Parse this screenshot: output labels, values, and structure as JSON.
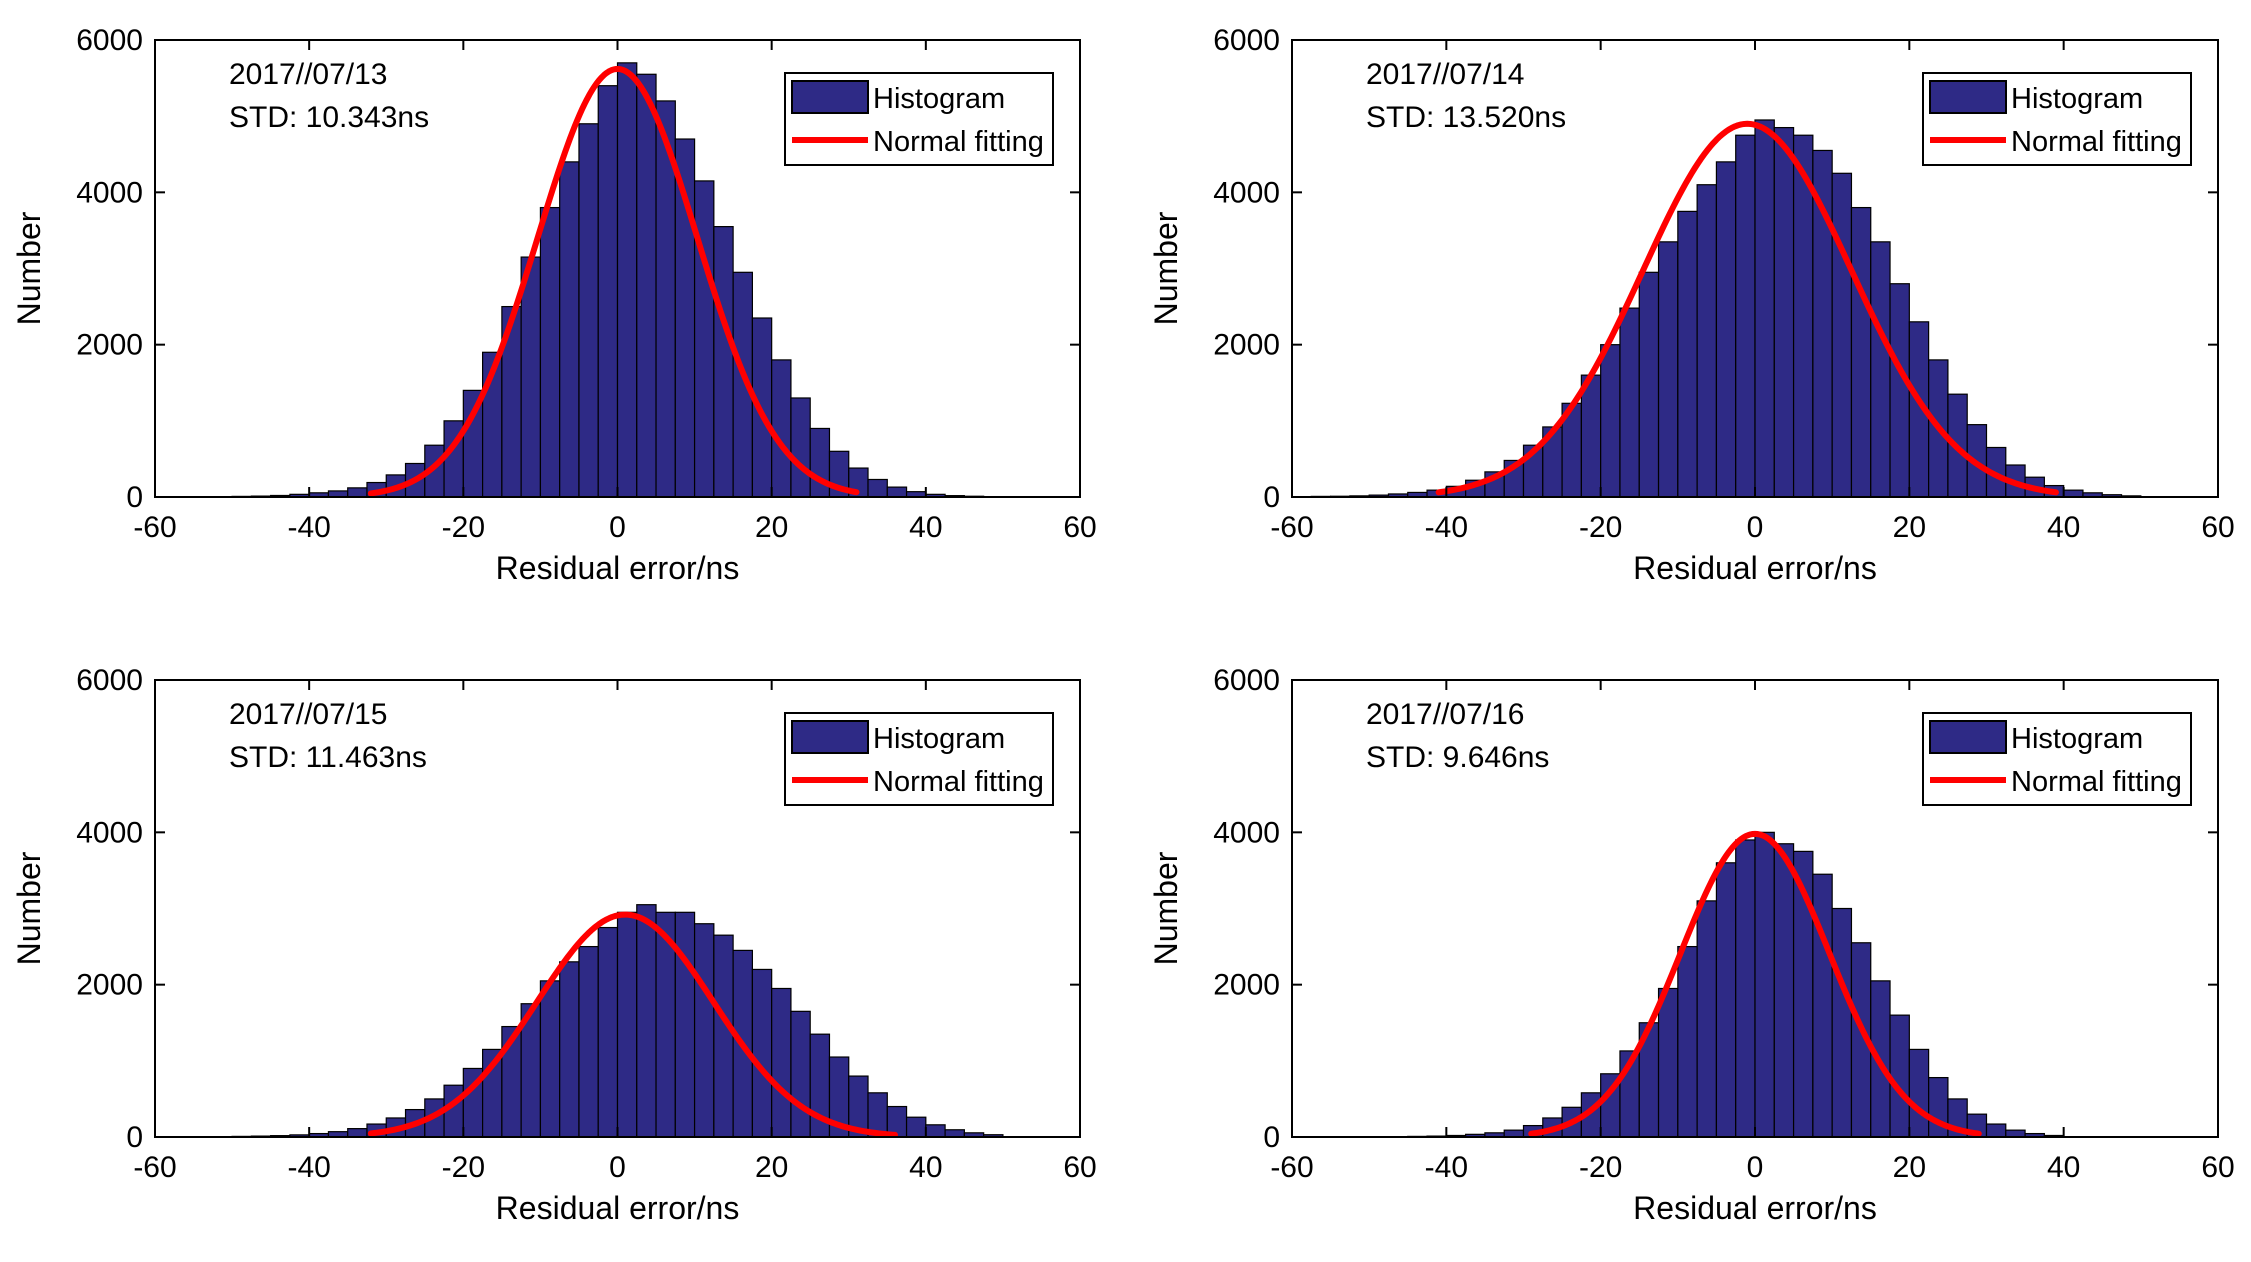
{
  "colors": {
    "bar_fill": "#2E2A86",
    "bar_edge": "#000000",
    "fit_line": "#FF0000",
    "axes": "#000000"
  },
  "legend": {
    "histogram_label": "Histogram",
    "fit_label": "Normal fitting"
  },
  "chart_data": [
    {
      "type": "bar",
      "title": "",
      "annotation_date": "2017//07/13",
      "annotation_std": "STD: 10.343ns",
      "xlabel": "Residual error/ns",
      "ylabel": "Number",
      "xlim": [
        -60,
        60
      ],
      "ylim": [
        0,
        6000
      ],
      "xticks": [
        -60,
        -40,
        -20,
        0,
        20,
        40,
        60
      ],
      "yticks": [
        0,
        2000,
        4000,
        6000
      ],
      "legend_position": "top-right",
      "bin_width": 2.5,
      "bin_centers": [
        -51.25,
        -48.75,
        -46.25,
        -43.75,
        -41.25,
        -38.75,
        -36.25,
        -33.75,
        -31.25,
        -28.75,
        -26.25,
        -23.75,
        -21.25,
        -18.75,
        -16.25,
        -13.75,
        -11.25,
        -8.75,
        -6.25,
        -3.75,
        -1.25,
        1.25,
        3.75,
        6.25,
        8.75,
        11.25,
        13.75,
        16.25,
        18.75,
        21.25,
        23.75,
        26.25,
        28.75,
        31.25,
        33.75,
        36.25,
        38.75,
        41.25,
        43.75,
        46.25,
        48.75,
        51.25
      ],
      "counts": [
        5,
        8,
        12,
        20,
        35,
        55,
        80,
        120,
        190,
        290,
        440,
        680,
        1000,
        1400,
        1900,
        2500,
        3150,
        3800,
        4400,
        4900,
        5400,
        5700,
        5550,
        5200,
        4700,
        4150,
        3550,
        2950,
        2350,
        1800,
        1300,
        900,
        600,
        380,
        230,
        130,
        70,
        35,
        18,
        10,
        5,
        3
      ],
      "fit": {
        "mean": 0,
        "std": 10.343,
        "peak": 5620,
        "x_range": [
          -32,
          31
        ]
      }
    },
    {
      "type": "bar",
      "title": "",
      "annotation_date": "2017//07/14",
      "annotation_std": "STD: 13.520ns",
      "xlabel": "Residual error/ns",
      "ylabel": "Number",
      "xlim": [
        -60,
        60
      ],
      "ylim": [
        0,
        6000
      ],
      "xticks": [
        -60,
        -40,
        -20,
        0,
        20,
        40,
        60
      ],
      "yticks": [
        0,
        2000,
        4000,
        6000
      ],
      "legend_position": "top-right",
      "bin_width": 2.5,
      "bin_centers": [
        -56.25,
        -53.75,
        -51.25,
        -48.75,
        -46.25,
        -43.75,
        -41.25,
        -38.75,
        -36.25,
        -33.75,
        -31.25,
        -28.75,
        -26.25,
        -23.75,
        -21.25,
        -18.75,
        -16.25,
        -13.75,
        -11.25,
        -8.75,
        -6.25,
        -3.75,
        -1.25,
        1.25,
        3.75,
        6.25,
        8.75,
        11.25,
        13.75,
        16.25,
        18.75,
        21.25,
        23.75,
        26.25,
        28.75,
        31.25,
        33.75,
        36.25,
        38.75,
        41.25,
        43.75,
        46.25,
        48.75
      ],
      "counts": [
        8,
        10,
        15,
        25,
        40,
        60,
        90,
        140,
        220,
        330,
        480,
        680,
        920,
        1230,
        1600,
        2000,
        2480,
        2950,
        3350,
        3750,
        4100,
        4400,
        4750,
        4950,
        4850,
        4750,
        4550,
        4250,
        3800,
        3350,
        2800,
        2300,
        1800,
        1350,
        950,
        650,
        420,
        260,
        150,
        90,
        55,
        30,
        15
      ],
      "fit": {
        "mean": -1,
        "std": 13.52,
        "peak": 4900,
        "x_range": [
          -41,
          39
        ]
      }
    },
    {
      "type": "bar",
      "title": "",
      "annotation_date": "2017//07/15",
      "annotation_std": "STD: 11.463ns",
      "xlabel": "Residual error/ns",
      "ylabel": "Number",
      "xlim": [
        -60,
        60
      ],
      "ylim": [
        0,
        6000
      ],
      "xticks": [
        -60,
        -40,
        -20,
        0,
        20,
        40,
        60
      ],
      "yticks": [
        0,
        2000,
        4000,
        6000
      ],
      "legend_position": "top-right",
      "bin_width": 2.5,
      "bin_centers": [
        -51.25,
        -48.75,
        -46.25,
        -43.75,
        -41.25,
        -38.75,
        -36.25,
        -33.75,
        -31.25,
        -28.75,
        -26.25,
        -23.75,
        -21.25,
        -18.75,
        -16.25,
        -13.75,
        -11.25,
        -8.75,
        -6.25,
        -3.75,
        -1.25,
        1.25,
        3.75,
        6.25,
        8.75,
        11.25,
        13.75,
        16.25,
        18.75,
        21.25,
        23.75,
        26.25,
        28.75,
        31.25,
        33.75,
        36.25,
        38.75,
        41.25,
        43.75,
        46.25,
        48.75
      ],
      "counts": [
        5,
        8,
        12,
        18,
        28,
        45,
        70,
        110,
        170,
        250,
        360,
        500,
        680,
        900,
        1150,
        1450,
        1750,
        2050,
        2300,
        2500,
        2750,
        2950,
        3050,
        2950,
        2950,
        2800,
        2650,
        2450,
        2200,
        1950,
        1650,
        1350,
        1050,
        800,
        580,
        400,
        260,
        160,
        95,
        55,
        30
      ],
      "fit": {
        "mean": 1,
        "std": 11.463,
        "peak": 2920,
        "x_range": [
          -32,
          36
        ]
      }
    },
    {
      "type": "bar",
      "title": "",
      "annotation_date": "2017//07/16",
      "annotation_std": "STD: 9.646ns",
      "xlabel": "Residual error/ns",
      "ylabel": "Number",
      "xlim": [
        -60,
        60
      ],
      "ylim": [
        0,
        6000
      ],
      "xticks": [
        -60,
        -40,
        -20,
        0,
        20,
        40,
        60
      ],
      "yticks": [
        0,
        2000,
        4000,
        6000
      ],
      "legend_position": "top-right",
      "bin_width": 2.5,
      "bin_centers": [
        -46.25,
        -43.75,
        -41.25,
        -38.75,
        -36.25,
        -33.75,
        -31.25,
        -28.75,
        -26.25,
        -23.75,
        -21.25,
        -18.75,
        -16.25,
        -13.75,
        -11.25,
        -8.75,
        -6.25,
        -3.75,
        -1.25,
        1.25,
        3.75,
        6.25,
        8.75,
        11.25,
        13.75,
        16.25,
        18.75,
        21.25,
        23.75,
        26.25,
        28.75,
        31.25,
        33.75,
        36.25,
        38.75
      ],
      "counts": [
        5,
        8,
        12,
        20,
        35,
        55,
        90,
        150,
        250,
        390,
        580,
        830,
        1130,
        1500,
        1950,
        2500,
        3100,
        3600,
        3900,
        4000,
        3850,
        3750,
        3450,
        3000,
        2550,
        2050,
        1600,
        1150,
        780,
        500,
        300,
        170,
        90,
        45,
        20
      ],
      "fit": {
        "mean": 0,
        "std": 9.646,
        "peak": 3980,
        "x_range": [
          -29,
          29
        ]
      }
    }
  ]
}
